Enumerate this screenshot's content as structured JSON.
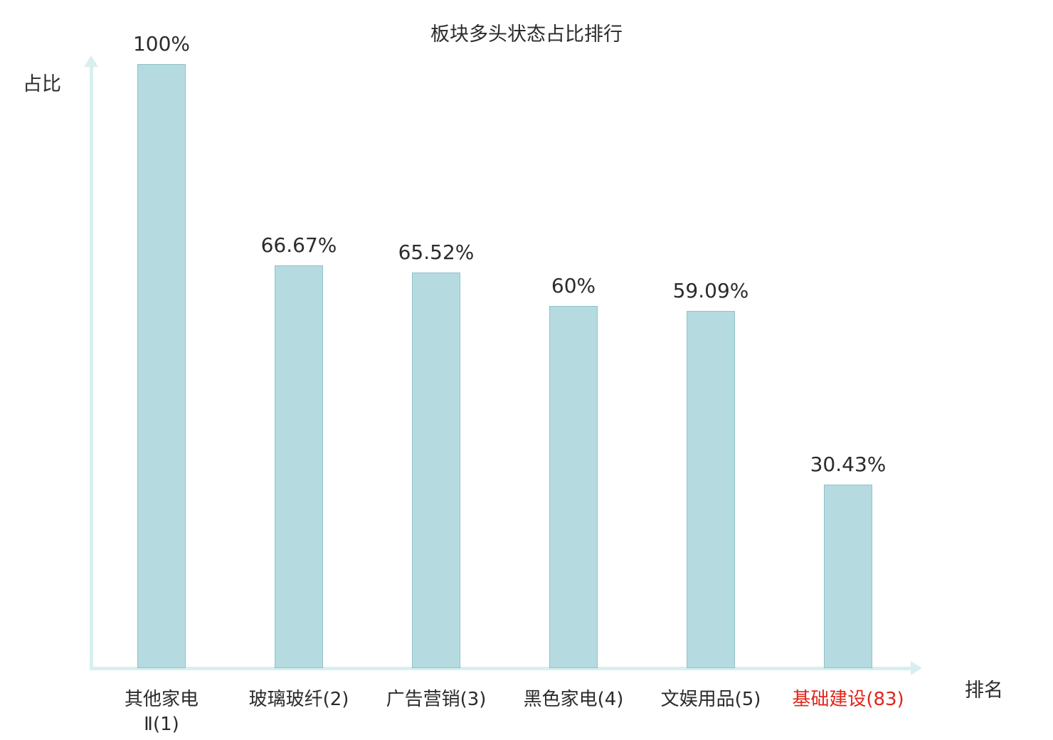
{
  "chart_data": {
    "type": "bar",
    "title": "板块多头状态占比排行",
    "xlabel": "排名",
    "ylabel": "占比",
    "categories": [
      "其他家电\nⅡ(1)",
      "玻璃玻纤(2)",
      "广告营销(3)",
      "黑色家电(4)",
      "文娱用品(5)",
      "基础建设(83)"
    ],
    "values": [
      100,
      66.67,
      65.52,
      60,
      59.09,
      30.43
    ],
    "value_labels": [
      "100%",
      "66.67%",
      "65.52%",
      "60%",
      "59.09%",
      "30.43%"
    ],
    "highlight_index": 5,
    "colors": {
      "bar_fill": "#b5dbe0",
      "bar_border": "#8fc2ca",
      "axis": "#d7efef",
      "text": "#2b2b2b",
      "highlight_text": "#e1251b"
    },
    "ylim": [
      0,
      100
    ],
    "grid": false,
    "legend": "none"
  }
}
